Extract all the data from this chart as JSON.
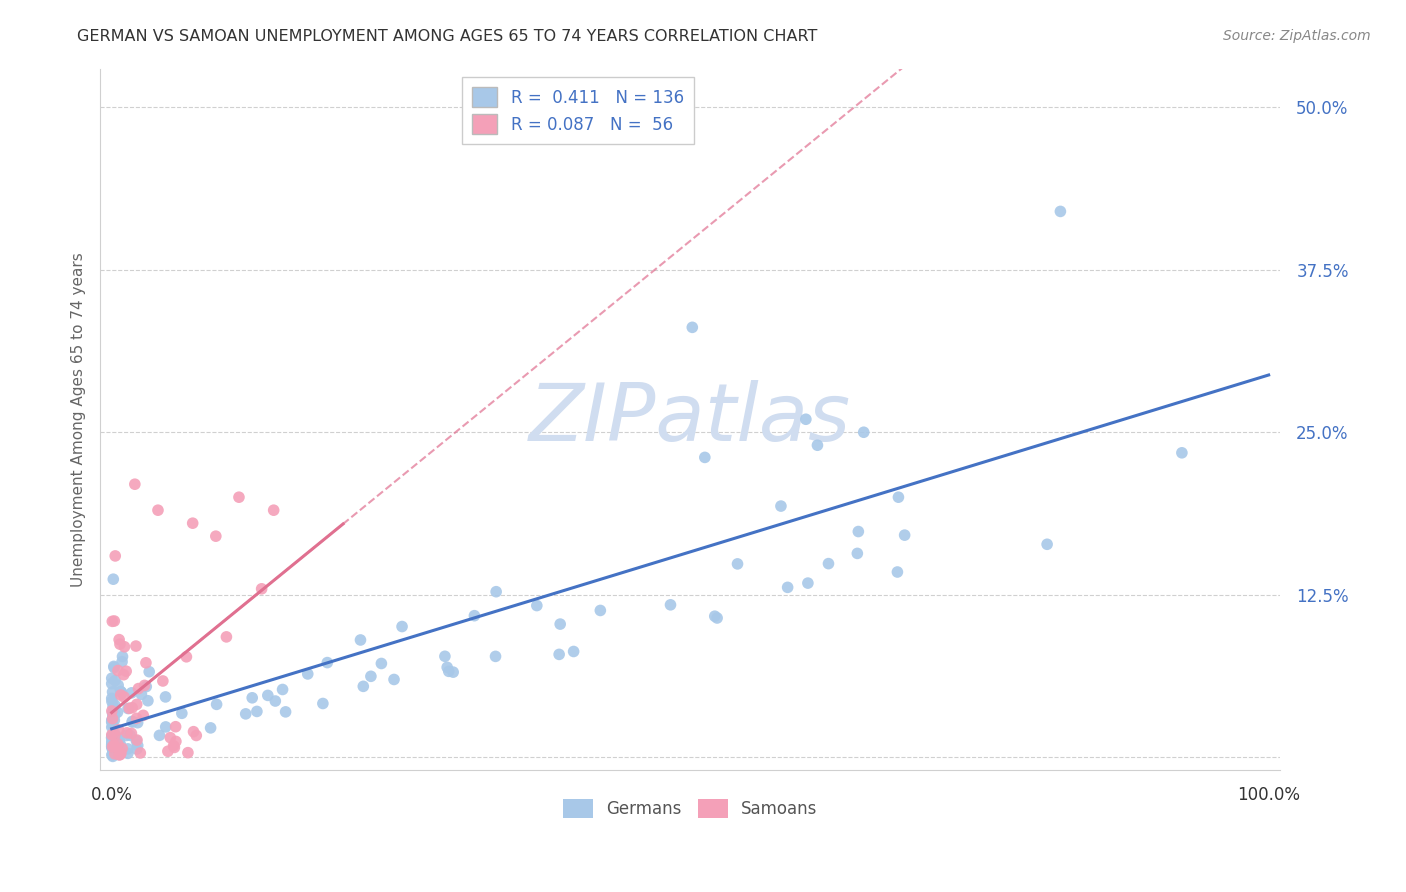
{
  "title": "GERMAN VS SAMOAN UNEMPLOYMENT AMONG AGES 65 TO 74 YEARS CORRELATION CHART",
  "source": "Source: ZipAtlas.com",
  "ylabel": "Unemployment Among Ages 65 to 74 years",
  "xlim": [
    0.0,
    1.0
  ],
  "ylim": [
    0.0,
    0.52
  ],
  "x_ticks": [
    0.0,
    0.25,
    0.5,
    0.75,
    1.0
  ],
  "x_tick_labels": [
    "0.0%",
    "",
    "",
    "",
    "100.0%"
  ],
  "y_ticks": [
    0.0,
    0.125,
    0.25,
    0.375,
    0.5
  ],
  "y_tick_labels": [
    "",
    "12.5%",
    "25.0%",
    "37.5%",
    "50.0%"
  ],
  "german_R": "0.411",
  "german_N": "136",
  "samoan_R": "0.087",
  "samoan_N": "56",
  "german_color": "#a8c8e8",
  "samoan_color": "#f4a0b8",
  "german_line_color": "#4472c4",
  "samoan_line_color": "#e07090",
  "tick_color": "#4472c4",
  "legend_label_german": "Germans",
  "legend_label_samoan": "Samoans",
  "watermark_text": "ZIPatlas",
  "watermark_color": "#d0ddf0",
  "grid_color": "#d0d0d0"
}
